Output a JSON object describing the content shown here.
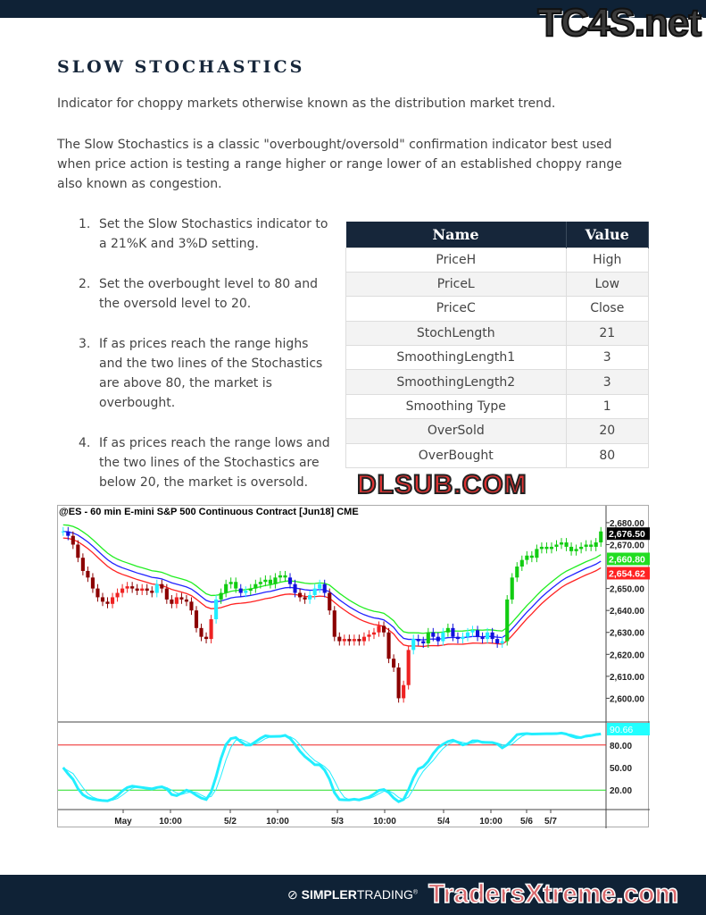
{
  "watermarks": {
    "top": "TC4S.net",
    "middle": "DLSUB.COM",
    "bottom": "TradersXtreme.com"
  },
  "title": "SLOW STOCHASTICS",
  "intro": "Indicator for choppy markets otherwise known as the distribution market trend.",
  "description": "The Slow Stochastics is a classic \"overbought/oversold\" confirmation indicator best used when price action is testing a range higher or range lower of an established choppy range also known as congestion.",
  "steps": [
    {
      "num": "1.",
      "text": "Set the Slow Stochastics indicator to a 21%K and 3%D setting."
    },
    {
      "num": "2.",
      "text": "Set the overbought level to 80 and the oversold level to 20."
    },
    {
      "num": "3.",
      "text": "If as prices reach the range highs and the two lines of the Stochastics are above 80, the market is overbought."
    },
    {
      "num": "4.",
      "text": "If as prices reach the range lows and the two lines of the Stochastics are below 20, the market is oversold."
    }
  ],
  "table": {
    "headers": [
      "Name",
      "Value"
    ],
    "rows": [
      [
        "PriceH",
        "High"
      ],
      [
        "PriceL",
        "Low"
      ],
      [
        "PriceC",
        "Close"
      ],
      [
        "StochLength",
        "21"
      ],
      [
        "SmoothingLength1",
        "3"
      ],
      [
        "SmoothingLength2",
        "3"
      ],
      [
        "Smoothing Type",
        "1"
      ],
      [
        "OverSold",
        "20"
      ],
      [
        "OverBought",
        "80"
      ]
    ]
  },
  "chart_data": {
    "type": "candlestick",
    "title": "@ES - 60 min  E-mini S&P 500 Continuous Contract [Jun18]  CME",
    "price_ticks": [
      "2,680.00",
      "2,670.00",
      "2,650.00",
      "2,640.00",
      "2,630.00",
      "2,620.00",
      "2,610.00",
      "2,600.00"
    ],
    "price_ylim": [
      2590,
      2682
    ],
    "price_labels": [
      {
        "value": "2,676.50",
        "color": "#000000"
      },
      {
        "value": "2,660.80",
        "color": "#22dd22"
      },
      {
        "value": "2,654.62",
        "color": "#ff2222"
      }
    ],
    "stoch_ticks": [
      "80.00",
      "50.00",
      "20.00"
    ],
    "stoch_label": {
      "value": "90.66",
      "color": "#22ffff"
    },
    "overbought": 80,
    "oversold": 20,
    "x_labels": [
      "May",
      "10:00",
      "5/2",
      "10:00",
      "5/3",
      "10:00",
      "5/4",
      "10:00",
      "5/6",
      "5/7"
    ],
    "close": [
      2676,
      2674,
      2670,
      2664,
      2658,
      2655,
      2650,
      2646,
      2644,
      2643,
      2646,
      2648,
      2650,
      2651,
      2650,
      2649,
      2650,
      2649,
      2648,
      2652,
      2650,
      2645,
      2643,
      2646,
      2645,
      2644,
      2640,
      2632,
      2628,
      2627,
      2636,
      2645,
      2648,
      2652,
      2653,
      2650,
      2648,
      2649,
      2650,
      2652,
      2653,
      2654,
      2652,
      2655,
      2656,
      2655,
      2652,
      2648,
      2646,
      2645,
      2647,
      2650,
      2652,
      2648,
      2640,
      2628,
      2626,
      2627,
      2626,
      2627,
      2626,
      2628,
      2629,
      2630,
      2633,
      2630,
      2618,
      2614,
      2600,
      2606,
      2622,
      2627,
      2626,
      2625,
      2630,
      2628,
      2626,
      2630,
      2632,
      2628,
      2627,
      2628,
      2630,
      2631,
      2628,
      2627,
      2630,
      2627,
      2625,
      2626,
      2645,
      2655,
      2660,
      2663,
      2665,
      2664,
      2668,
      2669,
      2668,
      2669,
      2670,
      2671,
      2669,
      2667,
      2668,
      2669,
      2670,
      2669,
      2671,
      2676
    ],
    "colors": {
      "upper_band": "#22ee22",
      "mid_band": "#2222ff",
      "lower_band": "#ff2222",
      "stoch": "#22eeff"
    }
  },
  "footer": {
    "brand_bold": "SIMPLER",
    "brand_light": "TRADING",
    "reg": "®"
  }
}
